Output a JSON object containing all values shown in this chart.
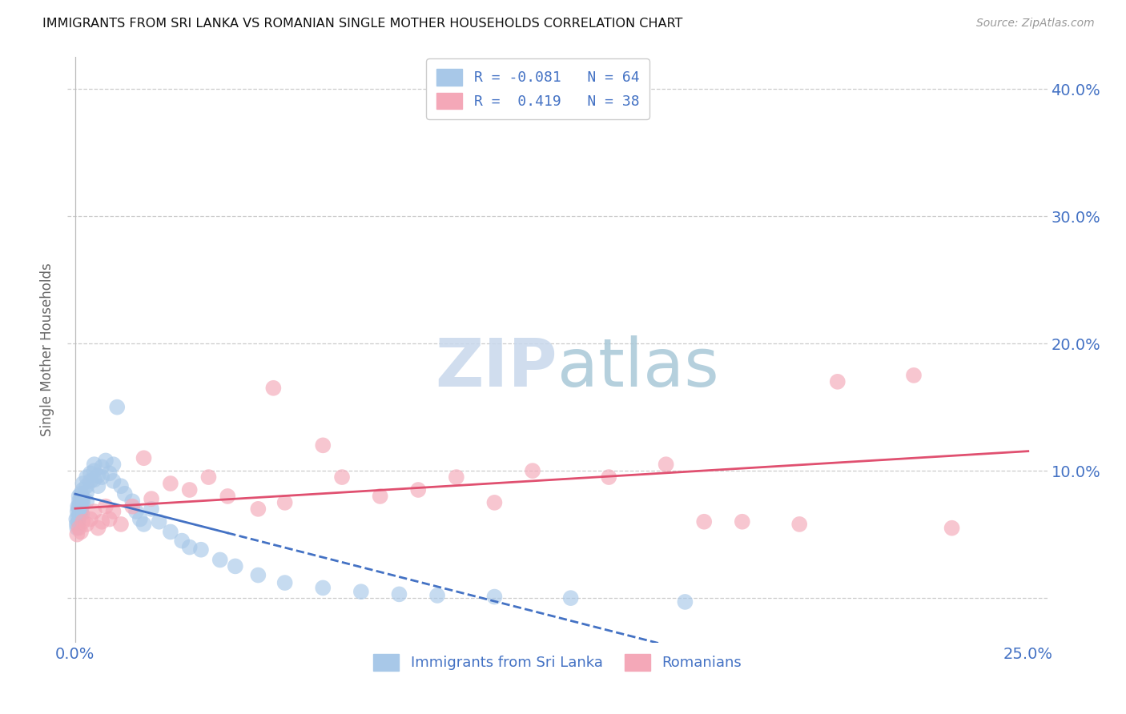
{
  "title": "IMMIGRANTS FROM SRI LANKA VS ROMANIAN SINGLE MOTHER HOUSEHOLDS CORRELATION CHART",
  "source": "Source: ZipAtlas.com",
  "ylabel": "Single Mother Households",
  "xlim": [
    -0.002,
    0.255
  ],
  "ylim": [
    -0.035,
    0.425
  ],
  "x_tick_positions": [
    0.0,
    0.05,
    0.1,
    0.15,
    0.2,
    0.25
  ],
  "x_tick_labels": [
    "0.0%",
    "",
    "",
    "",
    "",
    "25.0%"
  ],
  "y_tick_positions": [
    0.0,
    0.1,
    0.2,
    0.3,
    0.4
  ],
  "y_tick_labels": [
    "",
    "10.0%",
    "20.0%",
    "30.0%",
    "40.0%"
  ],
  "sri_lanka_color": "#a8c8e8",
  "romanian_color": "#f4a8b8",
  "sri_lanka_line_color": "#4472c4",
  "romanian_line_color": "#e05070",
  "legend_label_1": "R = -0.081   N = 64",
  "legend_label_2": "R =  0.419   N = 38",
  "legend_label_bottom_1": "Immigrants from Sri Lanka",
  "legend_label_bottom_2": "Romanians",
  "background_color": "#ffffff",
  "sri_lanka_x": [
    0.0003,
    0.0004,
    0.0005,
    0.0006,
    0.0007,
    0.0007,
    0.0008,
    0.0009,
    0.001,
    0.001,
    0.001,
    0.0012,
    0.0013,
    0.0014,
    0.0015,
    0.0015,
    0.0016,
    0.0017,
    0.0018,
    0.002,
    0.002,
    0.002,
    0.002,
    0.003,
    0.003,
    0.003,
    0.003,
    0.004,
    0.004,
    0.005,
    0.005,
    0.005,
    0.006,
    0.006,
    0.007,
    0.007,
    0.008,
    0.009,
    0.01,
    0.01,
    0.011,
    0.012,
    0.013,
    0.015,
    0.016,
    0.017,
    0.018,
    0.02,
    0.022,
    0.025,
    0.028,
    0.03,
    0.033,
    0.038,
    0.042,
    0.048,
    0.055,
    0.065,
    0.075,
    0.085,
    0.095,
    0.11,
    0.13,
    0.16
  ],
  "sri_lanka_y": [
    0.062,
    0.058,
    0.055,
    0.068,
    0.064,
    0.072,
    0.06,
    0.07,
    0.076,
    0.08,
    0.072,
    0.065,
    0.074,
    0.068,
    0.078,
    0.082,
    0.07,
    0.075,
    0.066,
    0.085,
    0.09,
    0.078,
    0.074,
    0.088,
    0.095,
    0.083,
    0.076,
    0.098,
    0.092,
    0.1,
    0.105,
    0.093,
    0.096,
    0.088,
    0.103,
    0.095,
    0.108,
    0.098,
    0.105,
    0.092,
    0.15,
    0.088,
    0.082,
    0.076,
    0.068,
    0.062,
    0.058,
    0.07,
    0.06,
    0.052,
    0.045,
    0.04,
    0.038,
    0.03,
    0.025,
    0.018,
    0.012,
    0.008,
    0.005,
    0.003,
    0.002,
    0.001,
    0.0,
    -0.003
  ],
  "romanian_x": [
    0.0005,
    0.001,
    0.0015,
    0.002,
    0.003,
    0.004,
    0.005,
    0.006,
    0.007,
    0.008,
    0.009,
    0.01,
    0.012,
    0.015,
    0.018,
    0.02,
    0.025,
    0.03,
    0.035,
    0.04,
    0.048,
    0.052,
    0.055,
    0.065,
    0.07,
    0.08,
    0.09,
    0.1,
    0.11,
    0.12,
    0.14,
    0.155,
    0.165,
    0.175,
    0.19,
    0.2,
    0.22,
    0.23
  ],
  "romanian_y": [
    0.05,
    0.055,
    0.052,
    0.06,
    0.058,
    0.062,
    0.068,
    0.055,
    0.06,
    0.072,
    0.062,
    0.068,
    0.058,
    0.072,
    0.11,
    0.078,
    0.09,
    0.085,
    0.095,
    0.08,
    0.07,
    0.165,
    0.075,
    0.12,
    0.095,
    0.08,
    0.085,
    0.095,
    0.075,
    0.1,
    0.095,
    0.105,
    0.06,
    0.06,
    0.058,
    0.17,
    0.175,
    0.055
  ]
}
